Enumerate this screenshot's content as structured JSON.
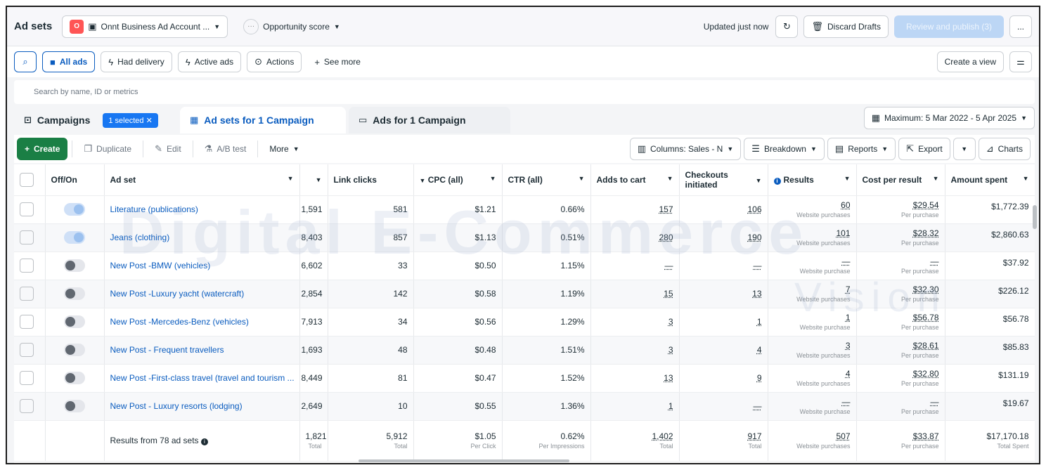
{
  "header": {
    "title": "Ad sets",
    "account_badge": "O",
    "account_name": "Onnt Business Ad Account ...",
    "opportunity": "Opportunity score",
    "updated": "Updated just now",
    "discard": "Discard Drafts",
    "publish": "Review and publish (3)",
    "more": "..."
  },
  "filters": {
    "all_ads": "All ads",
    "had_delivery": "Had delivery",
    "active_ads": "Active ads",
    "actions": "Actions",
    "see_more": "See more",
    "create_view": "Create a view"
  },
  "search": {
    "placeholder": "Search by name, ID or metrics"
  },
  "tabs": {
    "campaigns": "Campaigns",
    "selected": "1 selected",
    "ad_sets": "Ad sets for 1 Campaign",
    "ads": "Ads for 1 Campaign",
    "date_range": "Maximum: 5 Mar 2022 - 5 Apr 2025"
  },
  "toolbar": {
    "create": "Create",
    "duplicate": "Duplicate",
    "edit": "Edit",
    "ab_test": "A/B test",
    "more": "More",
    "columns": "Columns: Sales - N",
    "breakdown": "Breakdown",
    "reports": "Reports",
    "export": "Export",
    "charts": "Charts"
  },
  "columns": {
    "off_on": "Off/On",
    "ad_set": "Ad set",
    "link_clicks": "Link clicks",
    "cpc": "CPC (all)",
    "ctr": "CTR (all)",
    "adds_to_cart": "Adds to cart",
    "checkouts": "Checkouts initiated",
    "results": "Results",
    "cost_per_result": "Cost per result",
    "amount_spent": "Amount spent"
  },
  "rows": [
    {
      "on": true,
      "name": "Literature (publications)",
      "prev": "1,591",
      "clicks": "581",
      "cpc": "$1.21",
      "ctr": "0.66%",
      "cart": "157",
      "checkouts": "106",
      "results": "60",
      "results_sub": "Website purchases",
      "cost": "$29.54",
      "cost_sub": "Per purchase",
      "spent": "$1,772.39"
    },
    {
      "on": true,
      "name": "Jeans (clothing)",
      "prev": "8,403",
      "clicks": "857",
      "cpc": "$1.13",
      "ctr": "0.51%",
      "cart": "280",
      "checkouts": "190",
      "results": "101",
      "results_sub": "Website purchases",
      "cost": "$28.32",
      "cost_sub": "Per purchase",
      "spent": "$2,860.63"
    },
    {
      "on": false,
      "name": "New Post -BMW (vehicles)",
      "prev": "6,602",
      "clicks": "33",
      "cpc": "$0.50",
      "ctr": "1.15%",
      "cart": "—",
      "checkouts": "—",
      "results": "—",
      "results_sub": "Website purchase",
      "cost": "—",
      "cost_sub": "Per purchase",
      "spent": "$37.92"
    },
    {
      "on": false,
      "name": "New Post -Luxury yacht (watercraft)",
      "prev": "2,854",
      "clicks": "142",
      "cpc": "$0.58",
      "ctr": "1.19%",
      "cart": "15",
      "checkouts": "13",
      "results": "7",
      "results_sub": "Website purchases",
      "cost": "$32.30",
      "cost_sub": "Per purchase",
      "spent": "$226.12"
    },
    {
      "on": false,
      "name": "New Post -Mercedes-Benz (vehicles)",
      "prev": "7,913",
      "clicks": "34",
      "cpc": "$0.56",
      "ctr": "1.29%",
      "cart": "3",
      "checkouts": "1",
      "results": "1",
      "results_sub": "Website purchase",
      "cost": "$56.78",
      "cost_sub": "Per purchase",
      "spent": "$56.78"
    },
    {
      "on": false,
      "name": "New Post - Frequent travellers",
      "prev": "1,693",
      "clicks": "48",
      "cpc": "$0.48",
      "ctr": "1.51%",
      "cart": "3",
      "checkouts": "4",
      "results": "3",
      "results_sub": "Website purchases",
      "cost": "$28.61",
      "cost_sub": "Per purchase",
      "spent": "$85.83"
    },
    {
      "on": false,
      "name": "New Post -First-class travel (travel and tourism ...",
      "prev": "8,449",
      "clicks": "81",
      "cpc": "$0.47",
      "ctr": "1.52%",
      "cart": "13",
      "checkouts": "9",
      "results": "4",
      "results_sub": "Website purchases",
      "cost": "$32.80",
      "cost_sub": "Per purchase",
      "spent": "$131.19"
    },
    {
      "on": false,
      "name": "New Post - Luxury resorts (lodging)",
      "prev": "2,649",
      "clicks": "10",
      "cpc": "$0.55",
      "ctr": "1.36%",
      "cart": "1",
      "checkouts": "—",
      "results": "—",
      "results_sub": "Website purchase",
      "cost": "—",
      "cost_sub": "Per purchase",
      "spent": "$19.67"
    }
  ],
  "totals": {
    "label": "Results from 78 ad sets",
    "prev": "1,821",
    "prev_sub": "Total",
    "clicks": "5,912",
    "clicks_sub": "Total",
    "cpc": "$1.05",
    "cpc_sub": "Per Click",
    "ctr": "0.62%",
    "ctr_sub": "Per Impressions",
    "cart": "1,402",
    "cart_sub": "Total",
    "checkouts": "917",
    "checkouts_sub": "Total",
    "results": "507",
    "results_sub": "Website purchases",
    "cost": "$33.87",
    "cost_sub": "Per purchase",
    "spent": "$17,170.18",
    "spent_sub": "Total Spent"
  },
  "watermark": {
    "line1": "Digital E-Commerce",
    "line2": "Vision"
  },
  "colors": {
    "accent": "#0a5cbf",
    "create": "#1a7f45",
    "publish_disabled": "#bcd6f5"
  }
}
